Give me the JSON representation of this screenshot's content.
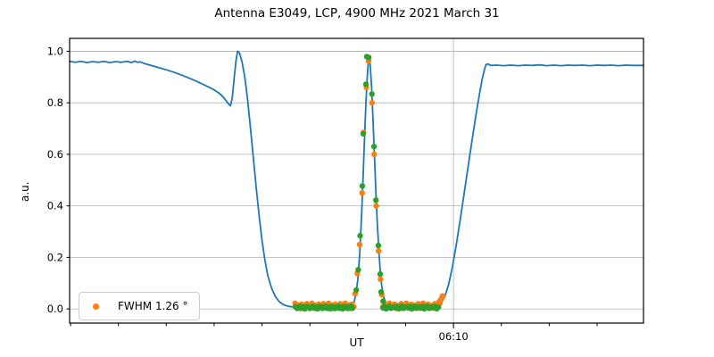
{
  "figure": {
    "title": "Antenna E3049, LCP, 4900 MHz 2021 March 31"
  },
  "colors": {
    "signal_line": "#1f77b4",
    "data_scatter": "#ff7f0e",
    "fit_scatter": "#2ca02c",
    "grid": "#b0b0b0",
    "spine": "#000000",
    "legend_border": "#cccccc"
  },
  "chart_data": {
    "type": "line",
    "title": "Antenna E3049, LCP, 4900 MHz 2021 March 31",
    "xlabel": "UT",
    "ylabel": "a.u.",
    "x_axis": {
      "unit": "minutes relative to 06:10 UT",
      "xlim": [
        -8.02,
        3.97
      ],
      "minor_tick_step_minutes": 1,
      "major_ticks": [
        {
          "x": 0,
          "label": "06:10"
        }
      ],
      "grid_vertical_at": [
        0
      ]
    },
    "y_axis": {
      "ylim": [
        -0.055,
        1.05
      ],
      "ticks": [
        0.0,
        0.2,
        0.4,
        0.6,
        0.8,
        1.0
      ],
      "tick_labels": [
        "0.0",
        "0.2",
        "0.4",
        "0.6",
        "0.8",
        "1.0"
      ],
      "grid": true
    },
    "legend": {
      "label": "FWHM 1.26 °",
      "marker_color": "#ff7f0e",
      "position": "lower left"
    },
    "series": [
      {
        "name": "signal",
        "type": "line",
        "color": "#1f77b4",
        "width": 1.8,
        "points": [
          [
            -8.02,
            0.961
          ],
          [
            -7.9,
            0.957
          ],
          [
            -7.78,
            0.961
          ],
          [
            -7.66,
            0.956
          ],
          [
            -7.54,
            0.96
          ],
          [
            -7.42,
            0.957
          ],
          [
            -7.3,
            0.961
          ],
          [
            -7.18,
            0.956
          ],
          [
            -7.06,
            0.96
          ],
          [
            -6.94,
            0.957
          ],
          [
            -6.82,
            0.961
          ],
          [
            -6.72,
            0.956
          ],
          [
            -6.66,
            0.962
          ],
          [
            -6.6,
            0.957
          ],
          [
            -6.55,
            0.959
          ],
          [
            -6.45,
            0.952
          ],
          [
            -6.3,
            0.944
          ],
          [
            -6.15,
            0.936
          ],
          [
            -6.0,
            0.928
          ],
          [
            -5.85,
            0.919
          ],
          [
            -5.7,
            0.909
          ],
          [
            -5.55,
            0.898
          ],
          [
            -5.4,
            0.886
          ],
          [
            -5.25,
            0.873
          ],
          [
            -5.1,
            0.86
          ],
          [
            -5.0,
            0.85
          ],
          [
            -4.9,
            0.838
          ],
          [
            -4.82,
            0.824
          ],
          [
            -4.75,
            0.808
          ],
          [
            -4.7,
            0.796
          ],
          [
            -4.66,
            0.788
          ],
          [
            -4.62,
            0.82
          ],
          [
            -4.58,
            0.9
          ],
          [
            -4.54,
            0.968
          ],
          [
            -4.51,
            1.0
          ],
          [
            -4.47,
            0.993
          ],
          [
            -4.42,
            0.96
          ],
          [
            -4.36,
            0.9
          ],
          [
            -4.3,
            0.81
          ],
          [
            -4.24,
            0.7
          ],
          [
            -4.18,
            0.585
          ],
          [
            -4.12,
            0.47
          ],
          [
            -4.06,
            0.36
          ],
          [
            -4.0,
            0.265
          ],
          [
            -3.94,
            0.19
          ],
          [
            -3.88,
            0.13
          ],
          [
            -3.8,
            0.08
          ],
          [
            -3.72,
            0.048
          ],
          [
            -3.64,
            0.028
          ],
          [
            -3.55,
            0.016
          ],
          [
            -3.45,
            0.01
          ],
          [
            -3.32,
            0.007
          ],
          [
            -3.1,
            0.006
          ],
          [
            -2.9,
            0.006
          ],
          [
            -2.7,
            0.005
          ],
          [
            -2.5,
            0.006
          ],
          [
            -2.3,
            0.006
          ],
          [
            -2.15,
            0.01
          ],
          [
            -2.08,
            0.025
          ],
          [
            -2.04,
            0.055
          ],
          [
            -2.0,
            0.11
          ],
          [
            -1.96,
            0.21
          ],
          [
            -1.92,
            0.36
          ],
          [
            -1.89,
            0.5
          ],
          [
            -1.86,
            0.65
          ],
          [
            -1.83,
            0.8
          ],
          [
            -1.8,
            0.905
          ],
          [
            -1.78,
            0.955
          ],
          [
            -1.76,
            0.968
          ],
          [
            -1.74,
            0.945
          ],
          [
            -1.71,
            0.86
          ],
          [
            -1.68,
            0.73
          ],
          [
            -1.65,
            0.59
          ],
          [
            -1.62,
            0.45
          ],
          [
            -1.59,
            0.33
          ],
          [
            -1.56,
            0.23
          ],
          [
            -1.53,
            0.15
          ],
          [
            -1.5,
            0.09
          ],
          [
            -1.46,
            0.048
          ],
          [
            -1.42,
            0.025
          ],
          [
            -1.36,
            0.012
          ],
          [
            -1.28,
            0.007
          ],
          [
            -1.1,
            0.005
          ],
          [
            -0.9,
            0.005
          ],
          [
            -0.7,
            0.005
          ],
          [
            -0.5,
            0.007
          ],
          [
            -0.35,
            0.012
          ],
          [
            -0.26,
            0.022
          ],
          [
            -0.18,
            0.048
          ],
          [
            -0.1,
            0.095
          ],
          [
            -0.02,
            0.165
          ],
          [
            0.06,
            0.25
          ],
          [
            0.14,
            0.345
          ],
          [
            0.22,
            0.445
          ],
          [
            0.3,
            0.545
          ],
          [
            0.38,
            0.645
          ],
          [
            0.46,
            0.742
          ],
          [
            0.54,
            0.832
          ],
          [
            0.6,
            0.892
          ],
          [
            0.65,
            0.932
          ],
          [
            0.68,
            0.948
          ],
          [
            0.72,
            0.951
          ],
          [
            0.78,
            0.945
          ],
          [
            0.9,
            0.946
          ],
          [
            1.05,
            0.944
          ],
          [
            1.2,
            0.946
          ],
          [
            1.35,
            0.944
          ],
          [
            1.5,
            0.946
          ],
          [
            1.65,
            0.945
          ],
          [
            1.8,
            0.947
          ],
          [
            1.95,
            0.944
          ],
          [
            2.1,
            0.946
          ],
          [
            2.25,
            0.944
          ],
          [
            2.4,
            0.946
          ],
          [
            2.55,
            0.945
          ],
          [
            2.7,
            0.946
          ],
          [
            2.85,
            0.944
          ],
          [
            3.0,
            0.946
          ],
          [
            3.15,
            0.945
          ],
          [
            3.3,
            0.946
          ],
          [
            3.45,
            0.944
          ],
          [
            3.6,
            0.946
          ],
          [
            3.75,
            0.945
          ],
          [
            3.97,
            0.945
          ]
        ]
      },
      {
        "name": "data-points",
        "type": "scatter",
        "color": "#ff7f0e",
        "radius": 3.2,
        "points": [
          [
            -2.055,
            0.059
          ],
          [
            -2.01,
            0.138
          ],
          [
            -1.96,
            0.25
          ],
          [
            -1.91,
            0.45
          ],
          [
            -1.88,
            0.685
          ],
          [
            -1.82,
            0.86
          ],
          [
            -1.775,
            0.962
          ],
          [
            -1.7,
            0.8
          ],
          [
            -1.655,
            0.6
          ],
          [
            -1.615,
            0.4
          ],
          [
            -1.565,
            0.225
          ],
          [
            -1.525,
            0.115
          ],
          [
            -1.5,
            0.055
          ],
          [
            -0.3,
            0.028
          ],
          [
            -0.26,
            0.038
          ],
          [
            -0.23,
            0.05
          ]
        ],
        "baseline_bands": [
          {
            "x_start": -3.31,
            "x_end": -2.07,
            "step": 0.035,
            "y_base": 0.002,
            "y_jitter_cycle": [
              0.02,
              0.004,
              0.012,
              0.0,
              0.016,
              0.007,
              0.002,
              0.018,
              0.01,
              0.001
            ]
          },
          {
            "x_start": -1.475,
            "x_end": -0.27,
            "step": 0.035,
            "y_base": 0.002,
            "y_jitter_cycle": [
              0.006,
              0.018,
              0.001,
              0.013,
              0.02,
              0.003,
              0.009,
              0.016,
              0.0,
              0.011
            ]
          }
        ]
      },
      {
        "name": "fit-points",
        "type": "scatter",
        "color": "#2ca02c",
        "radius": 3.2,
        "points": [
          [
            -2.03,
            0.073
          ],
          [
            -1.99,
            0.152
          ],
          [
            -1.95,
            0.284
          ],
          [
            -1.905,
            0.477
          ],
          [
            -1.885,
            0.68
          ],
          [
            -1.83,
            0.872
          ],
          [
            -1.81,
            0.979
          ],
          [
            -1.77,
            0.976
          ],
          [
            -1.705,
            0.834
          ],
          [
            -1.66,
            0.63
          ],
          [
            -1.62,
            0.422
          ],
          [
            -1.57,
            0.246
          ],
          [
            -1.53,
            0.135
          ],
          [
            -1.51,
            0.066
          ],
          [
            -1.47,
            0.03
          ]
        ],
        "baseline_bands": [
          {
            "x_start": -3.3,
            "x_end": -2.08,
            "step": 0.033,
            "y_base": 0.001,
            "y_jitter_cycle": [
              0.007,
              0.001,
              0.004,
              0.009,
              0.002,
              0.006,
              0.0,
              0.008
            ]
          },
          {
            "x_start": -1.47,
            "x_end": -0.285,
            "step": 0.033,
            "y_base": 0.001,
            "y_jitter_cycle": [
              0.003,
              0.008,
              0.0,
              0.006,
              0.009,
              0.002,
              0.005,
              0.007
            ]
          }
        ]
      }
    ]
  }
}
